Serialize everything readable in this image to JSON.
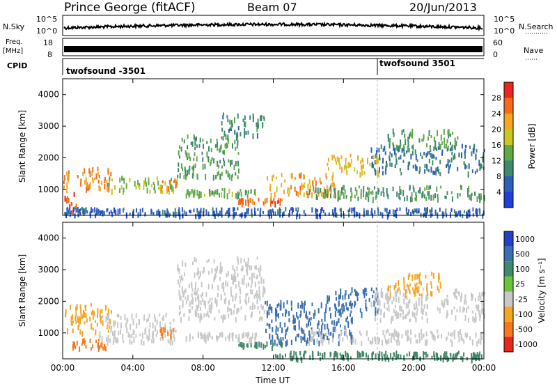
{
  "header": {
    "station": "Prince George (fitACF)",
    "beam": "Beam 07",
    "date": "20/Jun/2013"
  },
  "status_panels": {
    "nsky_label": "N.Sky",
    "nsearch_label": "N.Search",
    "nsky_ticks": [
      "10^5",
      "10^0"
    ],
    "nsearch_ticks": [
      "10^5",
      "10^0"
    ],
    "freq_label": "Freq.",
    "freq_unit": "[MHz]",
    "freq_ticks": [
      "18",
      "8"
    ],
    "nave_label": "Nave",
    "nave_ticks": [
      "60",
      "0"
    ],
    "cpid_label": "CPID",
    "cpid_entries": [
      {
        "name": "twofsound",
        "id": "-3501",
        "start_hour": 0
      },
      {
        "name": "twofsound",
        "id": "3501",
        "start_hour": 18
      }
    ]
  },
  "chart_data": [
    {
      "type": "heatmap",
      "panel": "power",
      "ylabel": "Slant Range [km]",
      "ylim": [
        180,
        4500
      ],
      "yticks": [
        "1000",
        "2000",
        "3000",
        "4000"
      ],
      "xlim": [
        0,
        24
      ],
      "colorbar": {
        "label": "Power [dB]",
        "ticks": [
          "4",
          "8",
          "12",
          "16",
          "20",
          "24",
          "28"
        ],
        "colors": [
          "#1f3fd8",
          "#2d5fb8",
          "#3f8a6a",
          "#60a84a",
          "#c8c820",
          "#f5a623",
          "#f56a1e",
          "#e8281e"
        ]
      },
      "echo_bands": [
        {
          "t0": 0.0,
          "t1": 2.8,
          "r0": 1000,
          "r1": 1700,
          "level": 24
        },
        {
          "t0": 0.0,
          "t1": 0.8,
          "r0": 300,
          "r1": 900,
          "level": 28
        },
        {
          "t0": 2.5,
          "t1": 6.5,
          "r0": 900,
          "r1": 1400,
          "level": 16
        },
        {
          "t0": 5.5,
          "t1": 6.5,
          "r0": 900,
          "r1": 1300,
          "level": 24
        },
        {
          "t0": 6.5,
          "t1": 10.0,
          "r0": 1400,
          "r1": 2700,
          "level": 12
        },
        {
          "t0": 9.0,
          "t1": 11.5,
          "r0": 2700,
          "r1": 3400,
          "level": 10
        },
        {
          "t0": 7.0,
          "t1": 11.0,
          "r0": 800,
          "r1": 1000,
          "level": 14
        },
        {
          "t0": 10.0,
          "t1": 12.5,
          "r0": 550,
          "r1": 700,
          "level": 26
        },
        {
          "t0": 11.5,
          "t1": 15.5,
          "r0": 800,
          "r1": 1500,
          "level": 22
        },
        {
          "t0": 15.0,
          "t1": 18.0,
          "r0": 1500,
          "r1": 2100,
          "level": 20
        },
        {
          "t0": 14.0,
          "t1": 24.0,
          "r0": 700,
          "r1": 1100,
          "level": 12
        },
        {
          "t0": 17.5,
          "t1": 24.0,
          "r0": 1500,
          "r1": 2400,
          "level": 8
        },
        {
          "t0": 18.5,
          "t1": 22.5,
          "r0": 2300,
          "r1": 2900,
          "level": 12
        },
        {
          "t0": 0.0,
          "t1": 24.0,
          "r0": 180,
          "r1": 400,
          "level": 6
        }
      ]
    },
    {
      "type": "heatmap",
      "panel": "velocity",
      "ylabel": "Slant Range [km]",
      "xlabel": "Time UT",
      "ylim": [
        180,
        4500
      ],
      "yticks": [
        "1000",
        "2000",
        "3000",
        "4000"
      ],
      "xticks": [
        "00:00",
        "04:00",
        "08:00",
        "12:00",
        "16:00",
        "20:00",
        "00:00"
      ],
      "xlim": [
        0,
        24
      ],
      "colorbar": {
        "label": "Velocity [m s⁻¹]",
        "ticks": [
          "1000",
          "500",
          "100",
          "25",
          "-25",
          "-100",
          "-500",
          "-1000"
        ],
        "colors": [
          "#2440c8",
          "#3a6fb0",
          "#3f8a6a",
          "#6cc43a",
          "#c8c8c8",
          "#f5a623",
          "#f57a1e",
          "#e8281e"
        ]
      },
      "echo_bands": [
        {
          "t0": 0.0,
          "t1": 2.8,
          "r0": 1000,
          "r1": 1900,
          "level": -100
        },
        {
          "t0": 0.5,
          "t1": 2.5,
          "r0": 500,
          "r1": 800,
          "level": -500
        },
        {
          "t0": 2.0,
          "t1": 6.5,
          "r0": 700,
          "r1": 1600,
          "level": 0
        },
        {
          "t0": 5.5,
          "t1": 6.3,
          "r0": 900,
          "r1": 1200,
          "level": -500
        },
        {
          "t0": 6.5,
          "t1": 11.5,
          "r0": 1400,
          "r1": 3400,
          "level": 0
        },
        {
          "t0": 7.0,
          "t1": 11.0,
          "r0": 800,
          "r1": 1000,
          "level": 0
        },
        {
          "t0": 10.0,
          "t1": 12.5,
          "r0": 550,
          "r1": 700,
          "level": 100
        },
        {
          "t0": 11.5,
          "t1": 16.5,
          "r0": 700,
          "r1": 2000,
          "level": 500
        },
        {
          "t0": 15.0,
          "t1": 18.0,
          "r0": 1600,
          "r1": 2400,
          "level": 500
        },
        {
          "t0": 14.0,
          "t1": 24.0,
          "r0": 700,
          "r1": 1100,
          "level": 0
        },
        {
          "t0": 17.5,
          "t1": 24.0,
          "r0": 1400,
          "r1": 2400,
          "level": 0
        },
        {
          "t0": 18.5,
          "t1": 21.5,
          "r0": 2200,
          "r1": 2900,
          "level": -100
        },
        {
          "t0": 12.0,
          "t1": 24.0,
          "r0": 180,
          "r1": 400,
          "level": 100
        }
      ]
    }
  ]
}
